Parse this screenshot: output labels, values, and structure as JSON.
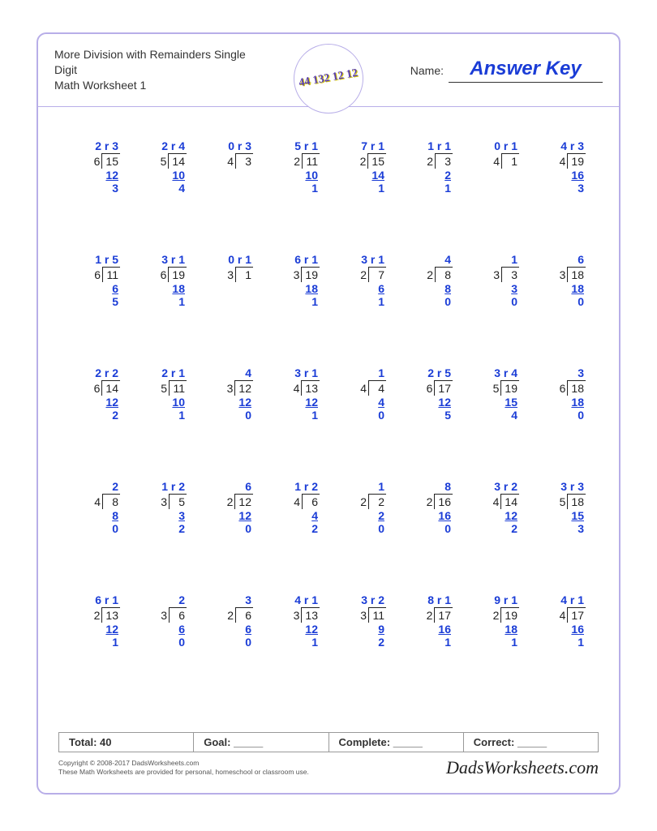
{
  "header": {
    "title_line1": "More Division with Remainders Single Digit",
    "title_line2": "Math Worksheet 1",
    "name_label": "Name:",
    "answer_key": "Answer Key",
    "logo_text": "44\n132\n12\n12"
  },
  "colors": {
    "border": "#b8aee8",
    "answer": "#1a3cd6",
    "text": "#333333",
    "brand": "#222222"
  },
  "problems": [
    [
      {
        "divisor": 6,
        "dividend": 15,
        "quotient": 2,
        "remainder": 3,
        "subtract": 12,
        "diff": 3
      },
      {
        "divisor": 5,
        "dividend": 14,
        "quotient": 2,
        "remainder": 4,
        "subtract": 10,
        "diff": 4
      },
      {
        "divisor": 4,
        "dividend": 3,
        "quotient": 0,
        "remainder": 3,
        "subtract": null,
        "diff": null
      },
      {
        "divisor": 2,
        "dividend": 11,
        "quotient": 5,
        "remainder": 1,
        "subtract": 10,
        "diff": 1
      },
      {
        "divisor": 2,
        "dividend": 15,
        "quotient": 7,
        "remainder": 1,
        "subtract": 14,
        "diff": 1
      },
      {
        "divisor": 2,
        "dividend": 3,
        "quotient": 1,
        "remainder": 1,
        "subtract": 2,
        "diff": 1
      },
      {
        "divisor": 4,
        "dividend": 1,
        "quotient": 0,
        "remainder": 1,
        "subtract": null,
        "diff": null
      },
      {
        "divisor": 4,
        "dividend": 19,
        "quotient": 4,
        "remainder": 3,
        "subtract": 16,
        "diff": 3
      }
    ],
    [
      {
        "divisor": 6,
        "dividend": 11,
        "quotient": 1,
        "remainder": 5,
        "subtract": 6,
        "diff": 5
      },
      {
        "divisor": 6,
        "dividend": 19,
        "quotient": 3,
        "remainder": 1,
        "subtract": 18,
        "diff": 1
      },
      {
        "divisor": 3,
        "dividend": 1,
        "quotient": 0,
        "remainder": 1,
        "subtract": null,
        "diff": null
      },
      {
        "divisor": 3,
        "dividend": 19,
        "quotient": 6,
        "remainder": 1,
        "subtract": 18,
        "diff": 1
      },
      {
        "divisor": 2,
        "dividend": 7,
        "quotient": 3,
        "remainder": 1,
        "subtract": 6,
        "diff": 1
      },
      {
        "divisor": 2,
        "dividend": 8,
        "quotient": 4,
        "remainder": null,
        "subtract": 8,
        "diff": 0
      },
      {
        "divisor": 3,
        "dividend": 3,
        "quotient": 1,
        "remainder": null,
        "subtract": 3,
        "diff": 0
      },
      {
        "divisor": 3,
        "dividend": 18,
        "quotient": 6,
        "remainder": null,
        "subtract": 18,
        "diff": 0
      }
    ],
    [
      {
        "divisor": 6,
        "dividend": 14,
        "quotient": 2,
        "remainder": 2,
        "subtract": 12,
        "diff": 2
      },
      {
        "divisor": 5,
        "dividend": 11,
        "quotient": 2,
        "remainder": 1,
        "subtract": 10,
        "diff": 1
      },
      {
        "divisor": 3,
        "dividend": 12,
        "quotient": 4,
        "remainder": null,
        "subtract": 12,
        "diff": 0
      },
      {
        "divisor": 4,
        "dividend": 13,
        "quotient": 3,
        "remainder": 1,
        "subtract": 12,
        "diff": 1
      },
      {
        "divisor": 4,
        "dividend": 4,
        "quotient": 1,
        "remainder": null,
        "subtract": 4,
        "diff": 0
      },
      {
        "divisor": 6,
        "dividend": 17,
        "quotient": 2,
        "remainder": 5,
        "subtract": 12,
        "diff": 5
      },
      {
        "divisor": 5,
        "dividend": 19,
        "quotient": 3,
        "remainder": 4,
        "subtract": 15,
        "diff": 4
      },
      {
        "divisor": 6,
        "dividend": 18,
        "quotient": 3,
        "remainder": null,
        "subtract": 18,
        "diff": 0
      }
    ],
    [
      {
        "divisor": 4,
        "dividend": 8,
        "quotient": 2,
        "remainder": null,
        "subtract": 8,
        "diff": 0
      },
      {
        "divisor": 3,
        "dividend": 5,
        "quotient": 1,
        "remainder": 2,
        "subtract": 3,
        "diff": 2
      },
      {
        "divisor": 2,
        "dividend": 12,
        "quotient": 6,
        "remainder": null,
        "subtract": 12,
        "diff": 0
      },
      {
        "divisor": 4,
        "dividend": 6,
        "quotient": 1,
        "remainder": 2,
        "subtract": 4,
        "diff": 2
      },
      {
        "divisor": 2,
        "dividend": 2,
        "quotient": 1,
        "remainder": null,
        "subtract": 2,
        "diff": 0
      },
      {
        "divisor": 2,
        "dividend": 16,
        "quotient": 8,
        "remainder": null,
        "subtract": 16,
        "diff": 0
      },
      {
        "divisor": 4,
        "dividend": 14,
        "quotient": 3,
        "remainder": 2,
        "subtract": 12,
        "diff": 2
      },
      {
        "divisor": 5,
        "dividend": 18,
        "quotient": 3,
        "remainder": 3,
        "subtract": 15,
        "diff": 3
      }
    ],
    [
      {
        "divisor": 2,
        "dividend": 13,
        "quotient": 6,
        "remainder": 1,
        "subtract": 12,
        "diff": 1
      },
      {
        "divisor": 3,
        "dividend": 6,
        "quotient": 2,
        "remainder": null,
        "subtract": 6,
        "diff": 0
      },
      {
        "divisor": 2,
        "dividend": 6,
        "quotient": 3,
        "remainder": null,
        "subtract": 6,
        "diff": 0
      },
      {
        "divisor": 3,
        "dividend": 13,
        "quotient": 4,
        "remainder": 1,
        "subtract": 12,
        "diff": 1
      },
      {
        "divisor": 3,
        "dividend": 11,
        "quotient": 3,
        "remainder": 2,
        "subtract": 9,
        "diff": 2
      },
      {
        "divisor": 2,
        "dividend": 17,
        "quotient": 8,
        "remainder": 1,
        "subtract": 16,
        "diff": 1
      },
      {
        "divisor": 2,
        "dividend": 19,
        "quotient": 9,
        "remainder": 1,
        "subtract": 18,
        "diff": 1
      },
      {
        "divisor": 4,
        "dividend": 17,
        "quotient": 4,
        "remainder": 1,
        "subtract": 16,
        "diff": 1
      }
    ]
  ],
  "footer": {
    "total_label": "Total:",
    "total_value": "40",
    "goal_label": "Goal:",
    "goal_value": "_____",
    "complete_label": "Complete:",
    "complete_value": "_____",
    "correct_label": "Correct:",
    "correct_value": "_____"
  },
  "copyright": {
    "line1": "Copyright © 2008-2017 DadsWorksheets.com",
    "line2": "These Math Worksheets are provided for personal, homeschool or classroom use."
  },
  "brand": "DadsWorksheets.com"
}
